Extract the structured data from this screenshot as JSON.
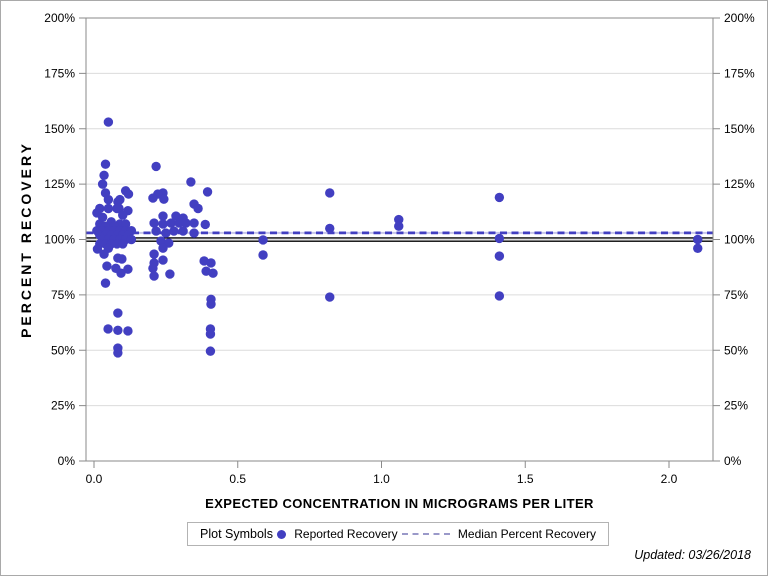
{
  "chart_data": {
    "type": "scatter",
    "title": "",
    "xlabel": "EXPECTED CONCENTRATION IN MICROGRAMS PER LITER",
    "ylabel": "PERCENT RECOVERY",
    "xlim": [
      -0.03,
      2.15
    ],
    "ylim": [
      0,
      200
    ],
    "x_ticks": [
      0.0,
      0.5,
      1.0,
      1.5,
      2.0
    ],
    "x_tick_labels": [
      "0.0",
      "0.5",
      "1.0",
      "1.5",
      "2.0"
    ],
    "y_ticks": [
      0,
      25,
      50,
      75,
      100,
      125,
      150,
      175,
      200
    ],
    "y_tick_labels": [
      "0%",
      "25%",
      "50%",
      "75%",
      "100%",
      "125%",
      "150%",
      "175%",
      "200%"
    ],
    "grid": "horizontal-only",
    "y_axis_mirrored_right": true,
    "reference_lines": [
      {
        "name": "100-percent-line",
        "value": 100,
        "style": "double-solid",
        "color": "#000000"
      },
      {
        "name": "Median Percent Recovery",
        "value": 103,
        "style": "dashed",
        "color": "#423fc1",
        "underlay_color": "#c7c6ea"
      }
    ],
    "series": [
      {
        "name": "Reported Recovery",
        "marker": "circle",
        "color": "#423fc1",
        "points": [
          [
            0.05,
            153
          ],
          [
            0.04,
            134
          ],
          [
            0.035,
            129
          ],
          [
            0.03,
            125
          ],
          [
            0.04,
            121
          ],
          [
            0.11,
            122
          ],
          [
            0.12,
            120.5
          ],
          [
            0.05,
            118
          ],
          [
            0.09,
            118
          ],
          [
            0.083,
            117
          ],
          [
            0.02,
            114
          ],
          [
            0.05,
            114
          ],
          [
            0.08,
            114
          ],
          [
            0.087,
            114
          ],
          [
            0.118,
            113
          ],
          [
            0.1,
            111
          ],
          [
            0.03,
            110
          ],
          [
            0.01,
            112
          ],
          [
            0.06,
            108
          ],
          [
            0.02,
            107
          ],
          [
            0.09,
            107
          ],
          [
            0.11,
            107
          ],
          [
            0.04,
            106
          ],
          [
            0.07,
            106
          ],
          [
            0.01,
            104
          ],
          [
            0.03,
            104
          ],
          [
            0.05,
            104
          ],
          [
            0.07,
            104
          ],
          [
            0.09,
            104
          ],
          [
            0.11,
            104
          ],
          [
            0.13,
            104
          ],
          [
            0.02,
            102
          ],
          [
            0.04,
            102
          ],
          [
            0.06,
            102
          ],
          [
            0.08,
            102
          ],
          [
            0.1,
            102
          ],
          [
            0.12,
            102
          ],
          [
            0.03,
            100
          ],
          [
            0.05,
            100
          ],
          [
            0.07,
            100
          ],
          [
            0.09,
            100
          ],
          [
            0.11,
            100
          ],
          [
            0.13,
            100
          ],
          [
            0.02,
            98
          ],
          [
            0.04,
            98
          ],
          [
            0.06,
            98
          ],
          [
            0.08,
            98
          ],
          [
            0.1,
            98
          ],
          [
            0.05,
            96
          ],
          [
            0.012,
            95.7
          ],
          [
            0.035,
            93.4
          ],
          [
            0.083,
            91.6
          ],
          [
            0.097,
            91.2
          ],
          [
            0.045,
            88
          ],
          [
            0.076,
            87
          ],
          [
            0.118,
            86.6
          ],
          [
            0.094,
            84.8
          ],
          [
            0.04,
            80.3
          ],
          [
            0.083,
            66.8
          ],
          [
            0.049,
            59.6
          ],
          [
            0.083,
            59
          ],
          [
            0.118,
            58.7
          ],
          [
            0.083,
            51
          ],
          [
            0.083,
            48.8
          ],
          [
            0.216,
            133
          ],
          [
            0.337,
            126
          ],
          [
            0.24,
            121
          ],
          [
            0.222,
            120.5
          ],
          [
            0.395,
            121.5
          ],
          [
            0.205,
            118.7
          ],
          [
            0.243,
            118.2
          ],
          [
            0.348,
            116
          ],
          [
            0.362,
            114
          ],
          [
            0.24,
            110.6
          ],
          [
            0.285,
            110.6
          ],
          [
            0.31,
            109.7
          ],
          [
            0.209,
            107.4
          ],
          [
            0.24,
            107
          ],
          [
            0.268,
            107.4
          ],
          [
            0.296,
            107.4
          ],
          [
            0.32,
            107.4
          ],
          [
            0.348,
            107.4
          ],
          [
            0.387,
            106.8
          ],
          [
            0.216,
            103.8
          ],
          [
            0.25,
            102.9
          ],
          [
            0.278,
            103.8
          ],
          [
            0.31,
            103.8
          ],
          [
            0.348,
            102.9
          ],
          [
            0.233,
            99.3
          ],
          [
            0.26,
            98.4
          ],
          [
            0.24,
            96.1
          ],
          [
            0.209,
            93.4
          ],
          [
            0.24,
            90.7
          ],
          [
            0.209,
            89.4
          ],
          [
            0.205,
            87
          ],
          [
            0.383,
            90.3
          ],
          [
            0.407,
            89.4
          ],
          [
            0.39,
            85.7
          ],
          [
            0.414,
            84.8
          ],
          [
            0.264,
            84.4
          ],
          [
            0.209,
            83.5
          ],
          [
            0.407,
            73
          ],
          [
            0.407,
            70.8
          ],
          [
            0.405,
            59.6
          ],
          [
            0.405,
            57.3
          ],
          [
            0.405,
            49.6
          ],
          [
            0.588,
            99.8
          ],
          [
            0.588,
            93
          ],
          [
            0.82,
            121
          ],
          [
            0.82,
            105
          ],
          [
            0.82,
            74
          ],
          [
            1.06,
            109
          ],
          [
            1.06,
            106
          ],
          [
            1.41,
            119
          ],
          [
            1.41,
            100.5
          ],
          [
            1.41,
            92.5
          ],
          [
            1.41,
            74.5
          ],
          [
            2.1,
            100
          ],
          [
            2.1,
            96
          ]
        ]
      }
    ]
  },
  "colors": {
    "marker": "#423fc1",
    "median_dash": "#423fc1",
    "median_underlay": "#c7c6ea",
    "reference_solid": "#000000",
    "gridline": "#dcdcdc",
    "frame": "#8a8a8a",
    "legend_dash_swatch": "#9a99c9"
  },
  "legend": {
    "title": "Plot Symbols",
    "items": [
      {
        "label": "Reported Recovery",
        "swatch": "dot"
      },
      {
        "label": "Median Percent Recovery",
        "swatch": "dashed-line"
      }
    ]
  },
  "footer": {
    "updated": "Updated: 03/26/2018"
  }
}
